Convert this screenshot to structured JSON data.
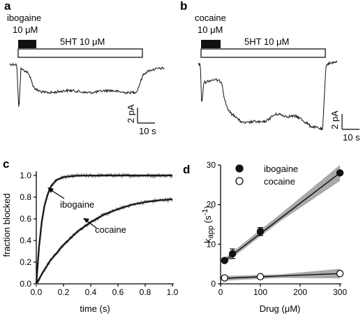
{
  "panels": {
    "a": {
      "letter": "a",
      "drug_name": "ibogaine",
      "drug_conc": "10 μM",
      "agonist_label": "5HT 10 μM",
      "scale_y": "2 pA",
      "scale_x": "10 s"
    },
    "b": {
      "letter": "b",
      "drug_name": "cocaine",
      "drug_conc": "10 μM",
      "agonist_label": "5HT 10 μM",
      "scale_y": "2 pA",
      "scale_x": "10 s"
    },
    "c": {
      "letter": "c"
    },
    "d": {
      "letter": "d"
    }
  },
  "chart_data": [
    {
      "type": "line",
      "panel": "c",
      "xlabel": "time (s)",
      "ylabel": "fraction blocked",
      "xlim": [
        0,
        1.0
      ],
      "ylim": [
        0,
        1.0
      ],
      "xticks": [
        "0.0",
        "0.2",
        "0.4",
        "0.6",
        "0.8",
        "1.0"
      ],
      "yticks": [
        "0.0",
        "0.2",
        "0.4",
        "0.6",
        "0.8",
        "1.0"
      ],
      "series": [
        {
          "name": "ibogaine",
          "x": [
            0,
            0.02,
            0.04,
            0.06,
            0.08,
            0.1,
            0.12,
            0.15,
            0.2,
            0.3,
            0.5,
            0.7,
            1.0
          ],
          "values": [
            0,
            0.34,
            0.57,
            0.72,
            0.81,
            0.88,
            0.92,
            0.96,
            0.985,
            0.998,
            1.0,
            1.0,
            1.0
          ],
          "color": "#1a1a1a"
        },
        {
          "name": "cocaine",
          "x": [
            0,
            0.05,
            0.1,
            0.2,
            0.3,
            0.4,
            0.5,
            0.6,
            0.7,
            0.8,
            0.9,
            1.0
          ],
          "values": [
            0,
            0.11,
            0.21,
            0.36,
            0.48,
            0.57,
            0.64,
            0.69,
            0.73,
            0.755,
            0.77,
            0.78
          ],
          "color": "#1a1a1a"
        }
      ],
      "raw_trace_color": "#8c8c8c",
      "annotations": [
        "ibogaine",
        "cocaine"
      ]
    },
    {
      "type": "scatter",
      "panel": "d",
      "xlabel": "Drug (μM)",
      "ylabel": "k",
      "ylabel_sub": "app",
      "ylabel_unit": " (s",
      "ylabel_sup": "-1",
      "ylabel_close": ")",
      "xlim": [
        0,
        300
      ],
      "ylim": [
        0,
        30
      ],
      "xticks": [
        "0",
        "100",
        "200",
        "300"
      ],
      "yticks": [
        "0",
        "10",
        "20",
        "30"
      ],
      "legend_position": "top-center",
      "series": [
        {
          "name": "ibogaine",
          "marker": "filled-circle",
          "x": [
            10,
            30,
            100,
            300
          ],
          "values": [
            5.9,
            7.6,
            13.2,
            28.0
          ],
          "errors": [
            0.4,
            1.2,
            1.0,
            0.4
          ],
          "fit": {
            "x": [
              10,
              300
            ],
            "y": [
              5.8,
              28.0
            ]
          },
          "band": {
            "x": [
              10,
              150,
              300
            ],
            "upper": [
              6.5,
              17.6,
              30.0
            ],
            "lower": [
              5.1,
              15.8,
              26.0
            ]
          }
        },
        {
          "name": "cocaine",
          "marker": "open-circle",
          "x": [
            10,
            100,
            300
          ],
          "values": [
            1.5,
            1.8,
            2.6
          ],
          "errors": [
            0.2,
            0.2,
            0.2
          ],
          "fit": {
            "x": [
              10,
              300
            ],
            "y": [
              1.4,
              2.6
            ]
          },
          "band": {
            "x": [
              10,
              150,
              300
            ],
            "upper": [
              2.0,
              2.4,
              3.8
            ],
            "lower": [
              0.8,
              1.5,
              1.4
            ]
          }
        }
      ]
    }
  ]
}
